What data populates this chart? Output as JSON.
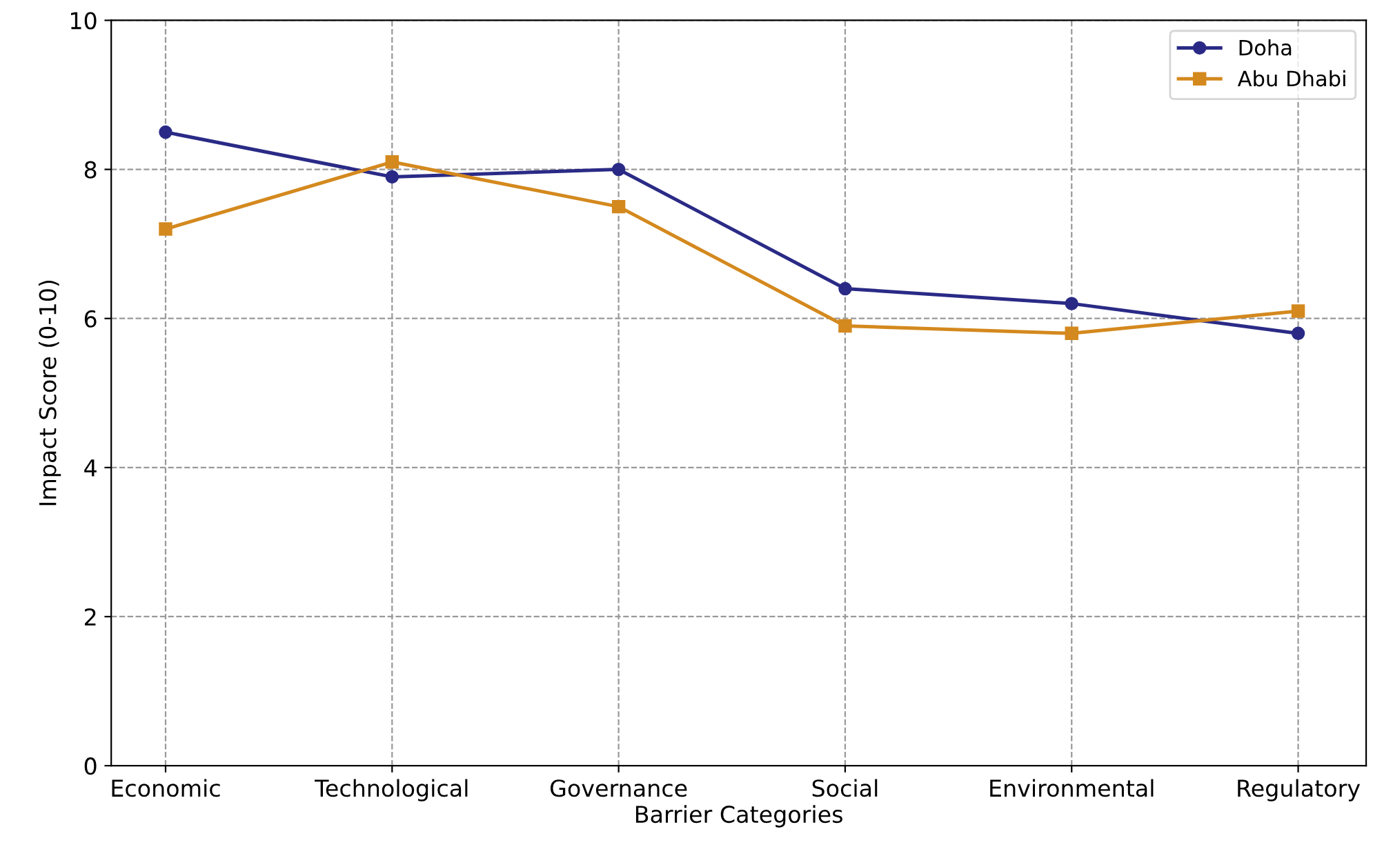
{
  "chart_data": {
    "type": "line",
    "xlabel": "Barrier Categories",
    "ylabel": "Impact Score (0-10)",
    "categories": [
      "Economic",
      "Technological",
      "Governance",
      "Social",
      "Environmental",
      "Regulatory"
    ],
    "series": [
      {
        "name": "Doha",
        "color": "#2a2a86",
        "values": [
          8.5,
          7.9,
          8.0,
          6.4,
          6.2,
          5.8
        ],
        "marker": "circle"
      },
      {
        "name": "Abu Dhabi",
        "color": "#d4891e",
        "values": [
          7.2,
          8.1,
          7.5,
          5.9,
          5.8,
          6.1
        ],
        "marker": "square"
      }
    ],
    "ylim": [
      0,
      10
    ],
    "yticks": [
      0,
      2,
      4,
      6,
      8,
      10
    ],
    "grid": true,
    "legend": "top right",
    "line_style": "solid"
  }
}
